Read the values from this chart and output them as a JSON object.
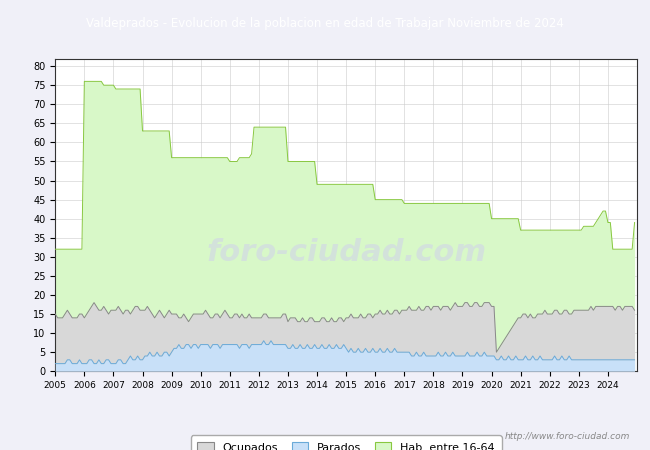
{
  "title": "Valdeprados - Evolucion de la poblacion en edad de Trabajar Noviembre de 2024",
  "title_bg": "#5b9bd5",
  "title_color": "white",
  "ylim": [
    0,
    82
  ],
  "yticks": [
    0,
    5,
    10,
    15,
    20,
    25,
    30,
    35,
    40,
    45,
    50,
    55,
    60,
    65,
    70,
    75,
    80
  ],
  "watermark": "http://www.foro-ciudad.com",
  "legend_labels": [
    "Ocupados",
    "Parados",
    "Hab. entre 16-64"
  ],
  "ocupados_fill": "#d8d8d8",
  "ocupados_line": "#888888",
  "parados_fill": "#c8e0f8",
  "parados_line": "#6aaad8",
  "hab_fill": "#d8f8c8",
  "hab_line": "#88c840",
  "background_color": "#f0f0f8",
  "plot_bg": "white",
  "grid_color": "#cccccc",
  "hab_data": [
    32,
    32,
    32,
    32,
    32,
    32,
    32,
    32,
    32,
    32,
    32,
    32,
    76,
    76,
    76,
    76,
    76,
    76,
    76,
    76,
    75,
    75,
    75,
    75,
    75,
    74,
    74,
    74,
    74,
    74,
    74,
    74,
    74,
    74,
    74,
    74,
    63,
    63,
    63,
    63,
    63,
    63,
    63,
    63,
    63,
    63,
    63,
    63,
    56,
    56,
    56,
    56,
    56,
    56,
    56,
    56,
    56,
    56,
    56,
    56,
    56,
    56,
    56,
    56,
    56,
    56,
    56,
    56,
    56,
    56,
    56,
    56,
    55,
    55,
    55,
    55,
    56,
    56,
    56,
    56,
    56,
    57,
    64,
    64,
    64,
    64,
    64,
    64,
    64,
    64,
    64,
    64,
    64,
    64,
    64,
    64,
    55,
    55,
    55,
    55,
    55,
    55,
    55,
    55,
    55,
    55,
    55,
    55,
    49,
    49,
    49,
    49,
    49,
    49,
    49,
    49,
    49,
    49,
    49,
    49,
    49,
    49,
    49,
    49,
    49,
    49,
    49,
    49,
    49,
    49,
    49,
    49,
    45,
    45,
    45,
    45,
    45,
    45,
    45,
    45,
    45,
    45,
    45,
    45,
    44,
    44,
    44,
    44,
    44,
    44,
    44,
    44,
    44,
    44,
    44,
    44,
    44,
    44,
    44,
    44,
    44,
    44,
    44,
    44,
    44,
    44,
    44,
    44,
    44,
    44,
    44,
    44,
    44,
    44,
    44,
    44,
    44,
    44,
    44,
    44,
    40,
    40,
    40,
    40,
    40,
    40,
    40,
    40,
    40,
    40,
    40,
    40,
    37,
    37,
    37,
    37,
    37,
    37,
    37,
    37,
    37,
    37,
    37,
    37,
    37,
    37,
    37,
    37,
    37,
    37,
    37,
    37,
    37,
    37,
    37,
    37,
    37,
    37,
    38,
    38,
    38,
    38,
    38,
    39,
    40,
    41,
    42,
    42,
    39,
    39,
    32,
    32,
    32,
    32,
    32,
    32,
    32,
    32,
    32,
    39
  ],
  "ocupados_data": [
    15,
    14,
    14,
    14,
    15,
    16,
    15,
    14,
    14,
    14,
    15,
    15,
    14,
    15,
    16,
    17,
    18,
    17,
    16,
    16,
    17,
    16,
    15,
    16,
    16,
    16,
    17,
    16,
    15,
    16,
    16,
    15,
    16,
    17,
    17,
    16,
    16,
    16,
    17,
    16,
    15,
    14,
    15,
    16,
    15,
    14,
    15,
    16,
    15,
    15,
    15,
    14,
    14,
    15,
    14,
    13,
    14,
    15,
    15,
    15,
    15,
    15,
    16,
    15,
    14,
    14,
    15,
    15,
    14,
    15,
    16,
    15,
    14,
    14,
    15,
    15,
    14,
    15,
    14,
    14,
    15,
    14,
    14,
    14,
    14,
    14,
    15,
    15,
    14,
    14,
    14,
    14,
    14,
    14,
    15,
    15,
    13,
    14,
    14,
    14,
    13,
    13,
    14,
    13,
    13,
    14,
    14,
    13,
    13,
    13,
    14,
    14,
    13,
    13,
    14,
    13,
    13,
    14,
    14,
    13,
    14,
    14,
    15,
    14,
    14,
    14,
    15,
    14,
    14,
    15,
    15,
    14,
    15,
    15,
    16,
    15,
    15,
    16,
    15,
    15,
    16,
    16,
    15,
    16,
    16,
    16,
    17,
    16,
    16,
    16,
    17,
    16,
    16,
    17,
    17,
    16,
    17,
    17,
    17,
    16,
    17,
    17,
    17,
    16,
    17,
    18,
    17,
    17,
    17,
    18,
    18,
    17,
    17,
    18,
    18,
    17,
    17,
    18,
    18,
    18,
    17,
    17,
    5,
    6,
    7,
    8,
    9,
    10,
    11,
    12,
    13,
    14,
    14,
    15,
    15,
    14,
    15,
    14,
    14,
    15,
    15,
    15,
    16,
    15,
    15,
    15,
    16,
    16,
    15,
    15,
    16,
    16,
    15,
    15,
    16,
    16,
    16,
    16,
    16,
    16,
    16,
    17,
    16,
    17,
    17,
    17,
    17,
    17,
    17,
    17,
    17,
    16,
    17,
    17,
    16,
    17,
    17,
    17,
    17,
    16
  ],
  "parados_data": [
    2,
    2,
    2,
    2,
    2,
    3,
    3,
    2,
    2,
    2,
    3,
    2,
    2,
    2,
    3,
    3,
    2,
    2,
    3,
    2,
    2,
    3,
    3,
    2,
    2,
    2,
    3,
    3,
    2,
    2,
    3,
    4,
    3,
    3,
    4,
    3,
    3,
    4,
    4,
    5,
    4,
    4,
    5,
    4,
    4,
    5,
    5,
    4,
    5,
    6,
    6,
    7,
    6,
    6,
    7,
    7,
    6,
    7,
    7,
    6,
    7,
    7,
    7,
    7,
    6,
    7,
    7,
    7,
    6,
    7,
    7,
    7,
    7,
    7,
    7,
    7,
    6,
    7,
    7,
    7,
    6,
    7,
    7,
    7,
    7,
    7,
    8,
    7,
    7,
    8,
    7,
    7,
    7,
    7,
    7,
    7,
    6,
    6,
    7,
    6,
    6,
    7,
    6,
    6,
    7,
    6,
    6,
    7,
    6,
    6,
    7,
    6,
    6,
    7,
    6,
    6,
    7,
    6,
    6,
    7,
    6,
    5,
    6,
    5,
    5,
    6,
    5,
    5,
    6,
    5,
    5,
    6,
    5,
    5,
    6,
    5,
    5,
    6,
    5,
    5,
    6,
    5,
    5,
    5,
    5,
    5,
    5,
    4,
    4,
    5,
    4,
    4,
    5,
    4,
    4,
    4,
    4,
    4,
    5,
    4,
    4,
    5,
    4,
    4,
    5,
    4,
    4,
    4,
    4,
    4,
    5,
    4,
    4,
    4,
    5,
    4,
    4,
    5,
    4,
    4,
    4,
    4,
    3,
    3,
    4,
    3,
    3,
    4,
    3,
    3,
    4,
    3,
    3,
    3,
    4,
    3,
    3,
    4,
    3,
    3,
    4,
    3,
    3,
    3,
    3,
    3,
    4,
    3,
    3,
    4,
    3,
    3,
    4,
    3,
    3,
    3,
    3,
    3,
    3,
    3,
    3,
    3,
    3,
    3,
    3,
    3,
    3,
    3,
    3,
    3,
    3,
    3,
    3,
    3,
    3,
    3,
    3,
    3,
    3,
    3
  ]
}
